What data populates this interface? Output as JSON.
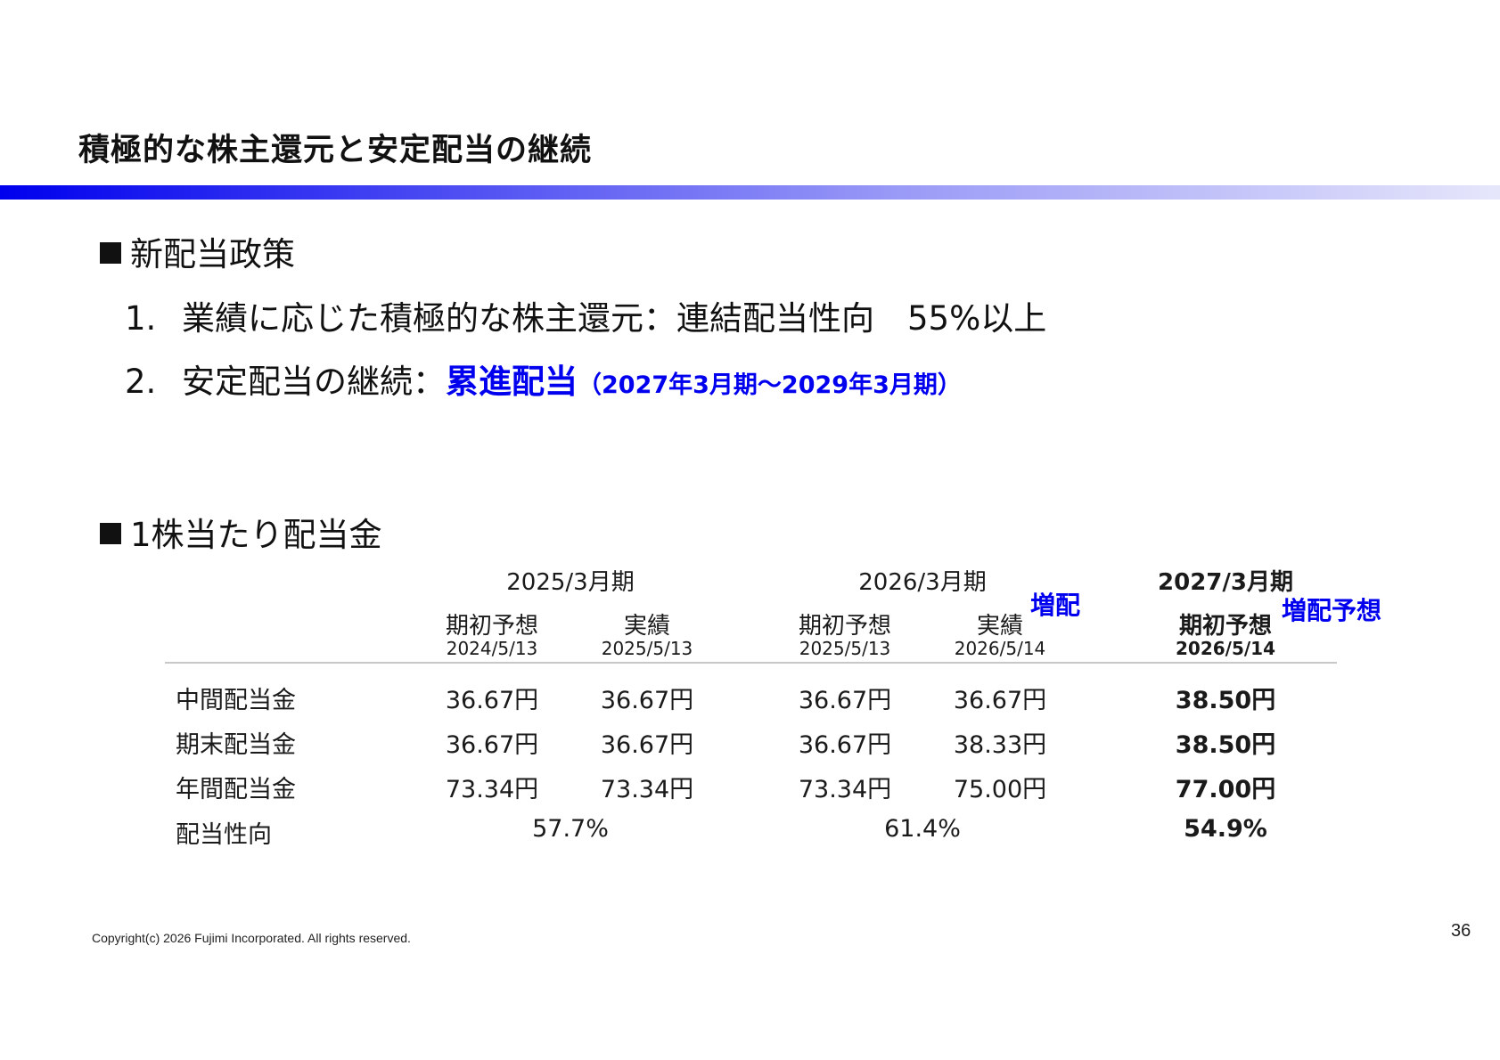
{
  "title": "積極的な株主還元と安定配当の継続",
  "policy": {
    "heading": "新配当政策",
    "items": [
      {
        "number": "1.",
        "text": "業績に応じた積極的な株主還元：連結配当性向　55%以上"
      },
      {
        "number": "2.",
        "text": "安定配当の継続：",
        "emphasis": "累進配当",
        "note": "（2027年3月期～2029年3月期）"
      }
    ]
  },
  "dividend_table": {
    "heading": "1株当たり配当金",
    "periods": [
      {
        "label": "2025/3月期",
        "columns": [
          {
            "label": "期初予想",
            "date": "2024/5/13"
          },
          {
            "label": "実績",
            "date": "2025/5/13"
          }
        ]
      },
      {
        "label": "2026/3月期",
        "badge": "増配",
        "columns": [
          {
            "label": "期初予想",
            "date": "2025/5/13"
          },
          {
            "label": "実績",
            "date": "2026/5/14"
          }
        ]
      },
      {
        "label": "2027/3月期",
        "badge": "増配予想",
        "columns": [
          {
            "label": "期初予想",
            "date": "2026/5/14"
          }
        ]
      }
    ],
    "rows": [
      {
        "label": "中間配当金",
        "values": [
          "36.67円",
          "36.67円",
          "36.67円",
          "36.67円",
          "38.50円"
        ]
      },
      {
        "label": "期末配当金",
        "values": [
          "36.67円",
          "36.67円",
          "36.67円",
          "38.33円",
          "38.50円"
        ]
      },
      {
        "label": "年間配当金",
        "values": [
          "73.34円",
          "73.34円",
          "73.34円",
          "75.00円",
          "77.00円"
        ]
      }
    ],
    "payout_ratio": {
      "label": "配当性向",
      "values": [
        "57.7%",
        "61.4%",
        "54.9%"
      ]
    }
  },
  "footer": {
    "copyright": "Copyright(c) 2026 Fujimi Incorporated. All rights reserved.",
    "page_number": "36"
  },
  "colors": {
    "accent": "#0000ee",
    "text": "#111111",
    "rule": "#c8c8c8"
  }
}
